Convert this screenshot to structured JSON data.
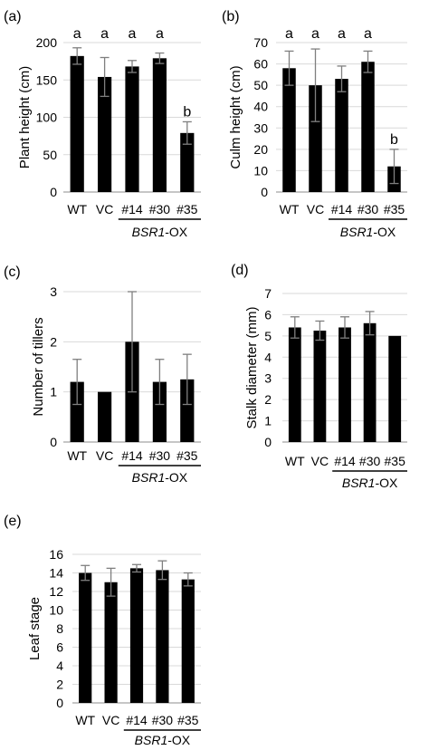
{
  "group_label": {
    "italic": "BSR1",
    "suffix": "-OX"
  },
  "colors": {
    "bar": "#000000",
    "grid": "#d9d9d9",
    "axis": "#8c8c8c",
    "error": "#7f7f7f"
  },
  "chart_data": [
    {
      "panel": "(a)",
      "type": "bar",
      "ylabel": "Plant height (cm)",
      "categories": [
        "WT",
        "VC",
        "#14",
        "#30",
        "#35"
      ],
      "values": [
        182,
        154,
        168,
        179,
        79
      ],
      "errors": [
        11,
        26,
        8,
        7,
        15
      ],
      "letters": [
        "a",
        "a",
        "a",
        "a",
        "b"
      ],
      "ylim": [
        0,
        200
      ],
      "yticks": [
        0,
        50,
        100,
        150,
        200
      ],
      "grid": true
    },
    {
      "panel": "(b)",
      "type": "bar",
      "ylabel": "Culm height (cm)",
      "categories": [
        "WT",
        "VC",
        "#14",
        "#30",
        "#35"
      ],
      "values": [
        58,
        50,
        53,
        61,
        12
      ],
      "errors": [
        8,
        17,
        6,
        5,
        8
      ],
      "letters": [
        "a",
        "a",
        "a",
        "a",
        "b"
      ],
      "ylim": [
        0,
        70
      ],
      "yticks": [
        0,
        10,
        20,
        30,
        40,
        50,
        60,
        70
      ],
      "grid": true
    },
    {
      "panel": "(c)",
      "type": "bar",
      "ylabel": "Number of tillers",
      "categories": [
        "WT",
        "VC",
        "#14",
        "#30",
        "#35"
      ],
      "values": [
        1.2,
        1.0,
        2.0,
        1.2,
        1.25
      ],
      "errors": [
        0.45,
        0,
        1.0,
        0.45,
        0.5
      ],
      "letters": [],
      "ylim": [
        0,
        3
      ],
      "yticks": [
        0,
        1,
        2,
        3
      ],
      "grid": true
    },
    {
      "panel": "(d)",
      "type": "bar",
      "ylabel": "Stalk diameter (mm)",
      "categories": [
        "WT",
        "VC",
        "#14",
        "#30",
        "#35"
      ],
      "values": [
        5.4,
        5.25,
        5.4,
        5.6,
        5.0
      ],
      "errors": [
        0.5,
        0.45,
        0.5,
        0.55,
        0
      ],
      "letters": [],
      "ylim": [
        0,
        7
      ],
      "yticks": [
        0,
        1,
        2,
        3,
        4,
        5,
        6,
        7
      ],
      "grid": true
    },
    {
      "panel": "(e)",
      "type": "bar",
      "ylabel": "Leaf stage",
      "categories": [
        "WT",
        "VC",
        "#14",
        "#30",
        "#35"
      ],
      "values": [
        14.0,
        13.0,
        14.5,
        14.3,
        13.3
      ],
      "errors": [
        0.8,
        1.5,
        0.4,
        1.0,
        0.7
      ],
      "letters": [],
      "ylim": [
        0,
        16
      ],
      "yticks": [
        0,
        2,
        4,
        6,
        8,
        10,
        12,
        14,
        16
      ],
      "grid": true
    }
  ]
}
